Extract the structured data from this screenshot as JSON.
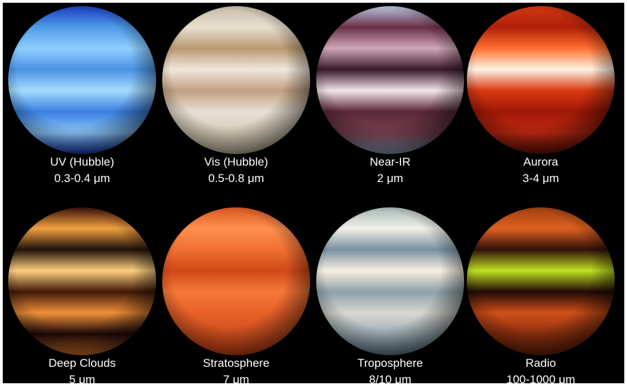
{
  "panels": [
    {
      "label": "UV (Hubble)",
      "band": "0.3-0.4 μm"
    },
    {
      "label": "Vis (Hubble)",
      "band": "0.5-0.8 μm"
    },
    {
      "label": "Near-IR",
      "band": "2 μm"
    },
    {
      "label": "Aurora",
      "band": "3-4 μm"
    },
    {
      "label": "Deep Clouds",
      "band": "5 μm"
    },
    {
      "label": "Stratosphere",
      "band": "7 μm"
    },
    {
      "label": "Troposphere",
      "band": "8/10 μm"
    },
    {
      "label": "Radio",
      "band": "100-1000 μm"
    }
  ]
}
